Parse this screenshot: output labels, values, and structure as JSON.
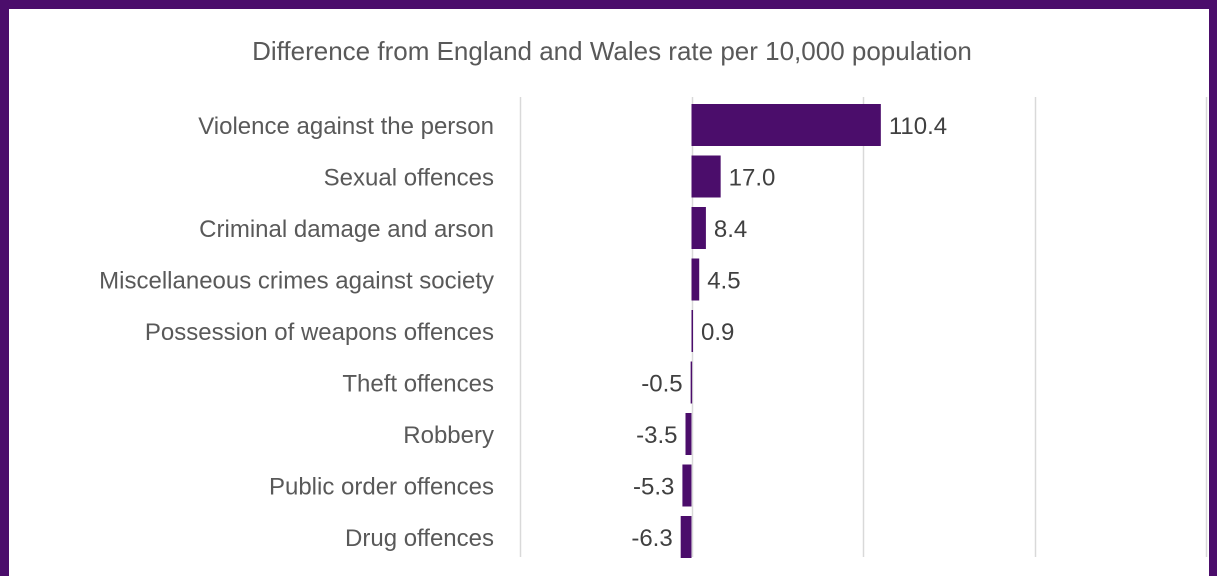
{
  "chart_data": {
    "type": "bar",
    "orientation": "horizontal",
    "title": "Difference from England and Wales rate per 10,000 population",
    "categories": [
      "Violence against the person",
      "Sexual offences",
      "Criminal damage and arson",
      "Miscellaneous crimes against society",
      "Possession of weapons offences",
      "Theft offences",
      "Robbery",
      "Public order offences",
      "Drug offences"
    ],
    "values": [
      110.4,
      17.0,
      8.4,
      4.5,
      0.9,
      -0.5,
      -3.5,
      -5.3,
      -6.3
    ],
    "value_labels": [
      "110.4",
      "17.0",
      "8.4",
      "4.5",
      "0.9",
      "-0.5",
      "-3.5",
      "-5.3",
      "-6.3"
    ],
    "xlim": [
      -100,
      300
    ],
    "grid": true,
    "legend": "none",
    "bar_color": "#4B0D6B",
    "frame_color": "#4B0D6B",
    "gridline_color": "#D9D9D9"
  }
}
